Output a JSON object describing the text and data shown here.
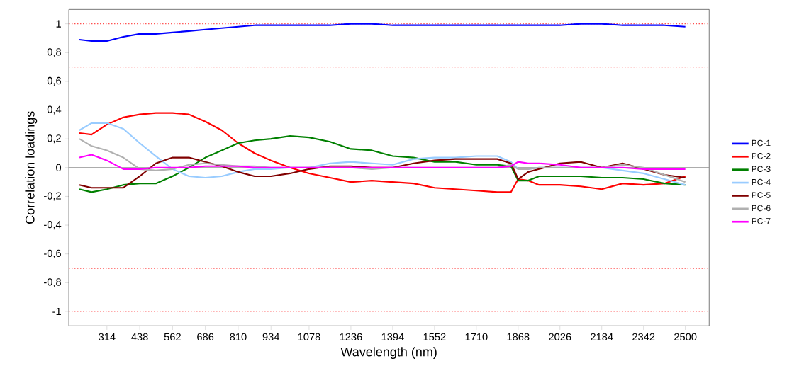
{
  "chart_data": {
    "type": "line",
    "xlabel": "Wavelength (nm)",
    "ylabel": "Correlation loadings",
    "x": [
      210,
      256,
      314,
      376,
      438,
      499,
      562,
      624,
      686,
      748,
      810,
      872,
      934,
      1006,
      1078,
      1157,
      1236,
      1315,
      1394,
      1473,
      1552,
      1631,
      1710,
      1789,
      1841,
      1868,
      1906,
      1947,
      2026,
      2105,
      2184,
      2263,
      2342,
      2421,
      2500
    ],
    "series": [
      {
        "name": "PC-1",
        "color": "#0000ff",
        "values": [
          0.89,
          0.88,
          0.88,
          0.91,
          0.93,
          0.93,
          0.94,
          0.95,
          0.96,
          0.97,
          0.98,
          0.99,
          0.99,
          0.99,
          0.99,
          0.99,
          1.0,
          1.0,
          0.99,
          0.99,
          0.99,
          0.99,
          0.99,
          0.99,
          0.99,
          0.99,
          0.99,
          0.99,
          0.99,
          1.0,
          1.0,
          0.99,
          0.99,
          0.99,
          0.98
        ]
      },
      {
        "name": "PC-2",
        "color": "#ff0000",
        "values": [
          0.24,
          0.23,
          0.3,
          0.35,
          0.37,
          0.38,
          0.38,
          0.37,
          0.32,
          0.26,
          0.17,
          0.1,
          0.05,
          0.0,
          -0.04,
          -0.07,
          -0.1,
          -0.09,
          -0.1,
          -0.11,
          -0.14,
          -0.15,
          -0.16,
          -0.17,
          -0.17,
          -0.08,
          -0.09,
          -0.12,
          -0.12,
          -0.13,
          -0.15,
          -0.11,
          -0.12,
          -0.11,
          -0.06
        ]
      },
      {
        "name": "PC-3",
        "color": "#008000",
        "values": [
          -0.15,
          -0.17,
          -0.15,
          -0.12,
          -0.11,
          -0.11,
          -0.06,
          0.0,
          0.07,
          0.12,
          0.17,
          0.19,
          0.2,
          0.22,
          0.21,
          0.18,
          0.13,
          0.12,
          0.08,
          0.07,
          0.04,
          0.04,
          0.02,
          0.02,
          0.01,
          -0.09,
          -0.09,
          -0.06,
          -0.06,
          -0.06,
          -0.07,
          -0.07,
          -0.08,
          -0.11,
          -0.12
        ]
      },
      {
        "name": "PC-4",
        "color": "#99ccff",
        "values": [
          0.26,
          0.31,
          0.31,
          0.27,
          0.17,
          0.08,
          -0.01,
          -0.06,
          -0.07,
          -0.06,
          -0.03,
          -0.01,
          -0.01,
          0.0,
          0.0,
          0.03,
          0.04,
          0.03,
          0.02,
          0.06,
          0.07,
          0.07,
          0.08,
          0.08,
          0.04,
          -0.01,
          -0.01,
          0.0,
          0.0,
          0.0,
          0.0,
          -0.02,
          -0.04,
          -0.08,
          -0.12
        ]
      },
      {
        "name": "PC-5",
        "color": "#800000",
        "values": [
          -0.12,
          -0.14,
          -0.14,
          -0.14,
          -0.06,
          0.03,
          0.07,
          0.07,
          0.04,
          0.01,
          -0.03,
          -0.06,
          -0.06,
          -0.04,
          -0.01,
          0.01,
          0.01,
          0.0,
          0.0,
          0.03,
          0.05,
          0.06,
          0.06,
          0.06,
          0.03,
          -0.08,
          -0.03,
          -0.01,
          0.03,
          0.04,
          0.0,
          0.03,
          -0.01,
          -0.05,
          -0.07
        ]
      },
      {
        "name": "PC-6",
        "color": "#b0b0b0",
        "values": [
          0.2,
          0.15,
          0.12,
          0.07,
          -0.01,
          -0.02,
          -0.01,
          0.02,
          0.03,
          0.02,
          0.01,
          0.01,
          0.0,
          0.0,
          0.0,
          0.0,
          0.0,
          -0.01,
          0.0,
          0.0,
          0.0,
          0.0,
          0.0,
          0.0,
          0.02,
          -0.01,
          -0.01,
          0.0,
          0.0,
          0.0,
          0.0,
          0.02,
          0.0,
          -0.05,
          -0.1
        ]
      },
      {
        "name": "PC-7",
        "color": "#ff00ff",
        "values": [
          0.07,
          0.09,
          0.05,
          -0.01,
          -0.01,
          0.0,
          0.0,
          0.0,
          0.01,
          0.01,
          0.01,
          0.0,
          0.0,
          0.0,
          0.0,
          0.0,
          0.0,
          0.0,
          0.0,
          0.0,
          0.0,
          0.0,
          0.0,
          0.0,
          0.01,
          0.04,
          0.03,
          0.03,
          0.02,
          0.0,
          0.0,
          0.0,
          -0.01,
          -0.01,
          -0.01
        ]
      }
    ],
    "xlim": [
      170,
      2590
    ],
    "ylim": [
      -1.1,
      1.1
    ],
    "xticks": [
      314,
      438,
      562,
      686,
      810,
      934,
      1078,
      1236,
      1394,
      1552,
      1710,
      1868,
      2026,
      2184,
      2342,
      2500
    ],
    "yticks": [
      {
        "value": -1,
        "label": "-1"
      },
      {
        "value": -0.8,
        "label": "-0,8"
      },
      {
        "value": -0.6,
        "label": "-0,6"
      },
      {
        "value": -0.4,
        "label": "-0,4"
      },
      {
        "value": -0.2,
        "label": "-0,2"
      },
      0,
      {
        "value": 0.2,
        "label": "0,2"
      },
      {
        "value": 0.4,
        "label": "0,4"
      },
      {
        "value": 0.6,
        "label": "0,6"
      },
      {
        "value": 0.8,
        "label": "0,8"
      },
      1
    ],
    "ref_lines": [
      {
        "axis": "y",
        "value": 1,
        "color": "#ff4040",
        "line_style": "dotted"
      },
      {
        "axis": "y",
        "value": 0.7,
        "color": "#ff4040",
        "line_style": "dotted"
      },
      {
        "axis": "y",
        "value": 0,
        "color": "#909090",
        "line_style": "solid"
      },
      {
        "axis": "y",
        "value": -0.7,
        "color": "#ff4040",
        "line_style": "dotted"
      },
      {
        "axis": "y",
        "value": -1,
        "color": "#ff4040",
        "line_style": "dotted"
      }
    ],
    "grid": false,
    "legend": "right",
    "marker": "none",
    "line_style": "solid"
  }
}
